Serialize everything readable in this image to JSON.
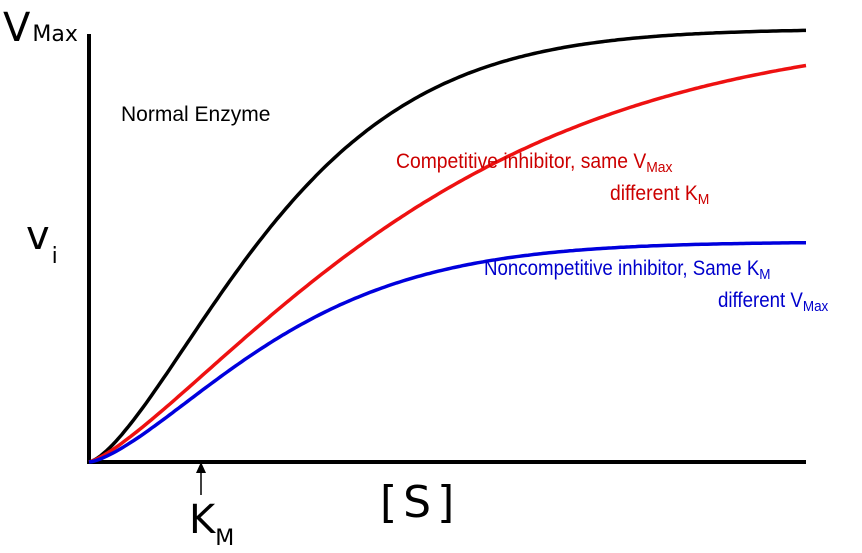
{
  "chart_data": {
    "type": "line",
    "title": "",
    "xlabel": "[S]",
    "ylabel": "vi",
    "y_top_label": {
      "main": "V",
      "sub": "Max"
    },
    "y_axis_label": {
      "main": "v",
      "sub": "i"
    },
    "x_axis_label": "[S]",
    "km_marker": {
      "main": "K",
      "sub": "M",
      "arrow": "↑"
    },
    "grid": false,
    "ticks": "none",
    "colors": {
      "normal": "#000000",
      "competitive": "#ee1111",
      "noncompetitive": "#0000dd"
    },
    "series": [
      {
        "name": "Normal Enzyme",
        "color": "#000000",
        "shape": "hyperbolic saturation curve, reaches VMax",
        "labels": [
          {
            "text": "Normal Enzyme"
          }
        ]
      },
      {
        "name": "Competitive inhibitor, same VMax different KM",
        "color": "#ee1111",
        "shape": "hyperbolic saturation curve, same VMax, larger KM",
        "labels": [
          {
            "text": "Competitive inhibitor,  same ",
            "main": "V",
            "sub": "Max"
          },
          {
            "text": "different ",
            "main": "K",
            "sub": "M"
          }
        ]
      },
      {
        "name": "Noncompetitive inhibitor, Same KM different VMax",
        "color": "#0000dd",
        "shape": "hyperbolic saturation curve, same KM, lower VMax",
        "labels": [
          {
            "text": "Noncompetitive inhibitor,  Same ",
            "main": "K",
            "sub": "M"
          },
          {
            "text": "different ",
            "main": "V",
            "sub": "Max"
          }
        ]
      }
    ]
  }
}
